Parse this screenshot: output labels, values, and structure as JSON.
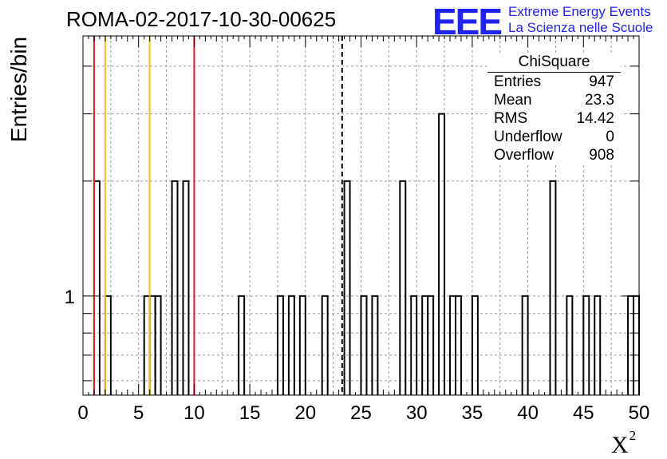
{
  "title": "ROMA-02-2017-10-30-00625",
  "brand": {
    "logo": "EEE",
    "line1": "Extreme Energy Events",
    "line2": "La Scienza nelle Scuole"
  },
  "stats": {
    "name": "ChiSquare",
    "rows": [
      {
        "label": "Entries",
        "value": "947"
      },
      {
        "label": "Mean",
        "value": "23.3"
      },
      {
        "label": "RMS",
        "value": "14.42"
      },
      {
        "label": "Underflow",
        "value": "0"
      },
      {
        "label": "Overflow",
        "value": "908"
      }
    ]
  },
  "colors": {
    "red_line": "#dd2222",
    "yellow_line": "#f0c020",
    "grid": "#999999",
    "bars": "#000000"
  },
  "chart_data": {
    "type": "bar",
    "title": "ROMA-02-2017-10-30-00625",
    "xlabel": "X²",
    "ylabel": "Entries/bin",
    "xlim": [
      0,
      50
    ],
    "ylim": [
      0.55,
      4.8
    ],
    "yscale": "log",
    "grid": true,
    "bin_width": 0.5,
    "x_ticks": [
      0,
      5,
      10,
      15,
      20,
      25,
      30,
      35,
      40,
      45,
      50
    ],
    "y_ticks": [
      1
    ],
    "bins": [
      {
        "x": 1.0,
        "y": 2
      },
      {
        "x": 2.0,
        "y": 1
      },
      {
        "x": 5.5,
        "y": 1
      },
      {
        "x": 6.0,
        "y": 1
      },
      {
        "x": 6.5,
        "y": 1
      },
      {
        "x": 8.0,
        "y": 2
      },
      {
        "x": 9.0,
        "y": 2
      },
      {
        "x": 14.0,
        "y": 1
      },
      {
        "x": 17.5,
        "y": 1
      },
      {
        "x": 18.5,
        "y": 1
      },
      {
        "x": 19.5,
        "y": 1
      },
      {
        "x": 21.5,
        "y": 1
      },
      {
        "x": 23.5,
        "y": 2
      },
      {
        "x": 25.0,
        "y": 1
      },
      {
        "x": 26.0,
        "y": 1
      },
      {
        "x": 28.5,
        "y": 2
      },
      {
        "x": 29.5,
        "y": 1
      },
      {
        "x": 30.5,
        "y": 1
      },
      {
        "x": 31.0,
        "y": 1
      },
      {
        "x": 32.0,
        "y": 3
      },
      {
        "x": 33.0,
        "y": 1
      },
      {
        "x": 33.5,
        "y": 1
      },
      {
        "x": 35.0,
        "y": 1
      },
      {
        "x": 39.5,
        "y": 1
      },
      {
        "x": 42.0,
        "y": 2
      },
      {
        "x": 43.5,
        "y": 1
      },
      {
        "x": 45.0,
        "y": 1
      },
      {
        "x": 46.0,
        "y": 1
      },
      {
        "x": 49.0,
        "y": 1
      },
      {
        "x": 49.5,
        "y": 1
      }
    ],
    "vertical_lines": [
      {
        "x": 1.0,
        "color": "red"
      },
      {
        "x": 2.0,
        "color": "yellow"
      },
      {
        "x": 6.0,
        "color": "yellow"
      },
      {
        "x": 10.0,
        "color": "red"
      },
      {
        "x": 23.3,
        "color": "black",
        "style": "dashed"
      }
    ]
  }
}
